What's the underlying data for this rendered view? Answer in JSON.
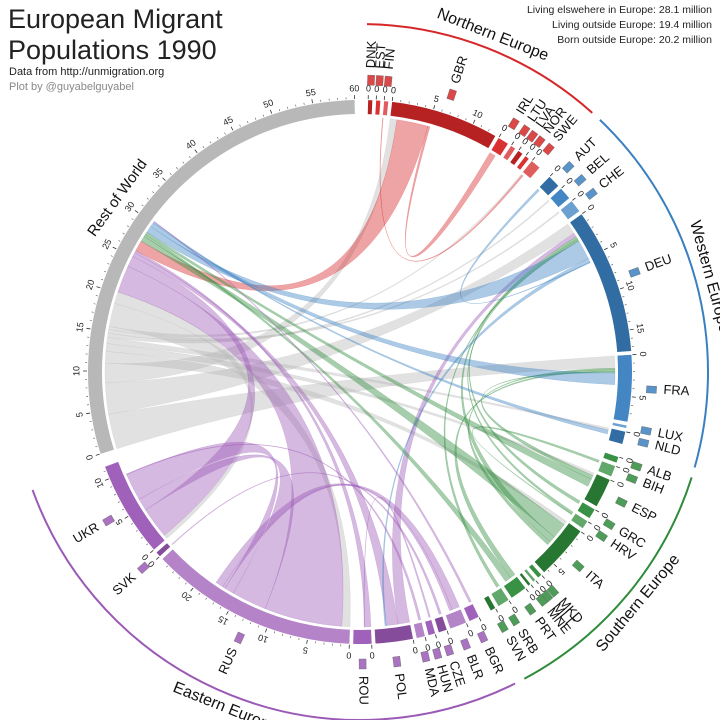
{
  "header": {
    "title": "European Migrant\nPopulations 1990",
    "source": "Data from http://unmigration.org",
    "credit": "Plot by @guyabelguyabel"
  },
  "stats": [
    {
      "label": "Living elswehere in Europe",
      "value": "28.1 million"
    },
    {
      "label": "Living outside Europe",
      "value": "19.4 million"
    },
    {
      "label": "Born outside Europe",
      "value": "20.2 million"
    }
  ],
  "chart_data": {
    "type": "chord",
    "unit": "millions",
    "regions": [
      {
        "name": "Northern Europe",
        "color": "#d62728",
        "countries": [
          {
            "code": "DNK",
            "total": 0.5,
            "ticks": [
              0
            ]
          },
          {
            "code": "EST",
            "total": 0.5,
            "ticks": [
              0
            ]
          },
          {
            "code": "FIN",
            "total": 0.5,
            "ticks": [
              0
            ]
          },
          {
            "code": "GBR",
            "total": 13,
            "ticks": [
              0,
              5,
              10
            ]
          },
          {
            "code": "IRL",
            "total": 1.3,
            "ticks": [
              0
            ]
          },
          {
            "code": "LTU",
            "total": 0.6,
            "ticks": [
              0
            ]
          },
          {
            "code": "LVA",
            "total": 0.6,
            "ticks": [
              0
            ]
          },
          {
            "code": "NOR",
            "total": 0.5,
            "ticks": [
              0
            ]
          },
          {
            "code": "SWE",
            "total": 1.2,
            "ticks": [
              0
            ]
          }
        ]
      },
      {
        "name": "Western Europe",
        "color": "#3a80c0",
        "countries": [
          {
            "code": "AUT",
            "total": 1.5,
            "ticks": [
              0
            ]
          },
          {
            "code": "BEL",
            "total": 1.5,
            "ticks": [
              0
            ]
          },
          {
            "code": "CHE",
            "total": 1.5,
            "ticks": [
              0
            ]
          },
          {
            "code": "DEU",
            "total": 17.5,
            "ticks": [
              0,
              5,
              10,
              15
            ]
          },
          {
            "code": "FRA",
            "total": 8,
            "ticks": [
              0,
              5
            ]
          },
          {
            "code": "LUX",
            "total": 0.3,
            "ticks": []
          },
          {
            "code": "NLD",
            "total": 1.5,
            "ticks": [
              0
            ]
          }
        ]
      },
      {
        "name": "Southern Europe",
        "color": "#2e8b3a",
        "countries": [
          {
            "code": "ALB",
            "total": 0.7,
            "ticks": [
              0
            ]
          },
          {
            "code": "BIH",
            "total": 1.3,
            "ticks": [
              0
            ]
          },
          {
            "code": "ESP",
            "total": 3.5,
            "ticks": [
              0
            ]
          },
          {
            "code": "GRC",
            "total": 1.2,
            "ticks": [
              0
            ]
          },
          {
            "code": "HRV",
            "total": 1,
            "ticks": [
              0
            ]
          },
          {
            "code": "ITA",
            "total": 6.5,
            "ticks": [
              0,
              5
            ]
          },
          {
            "code": "MKD",
            "total": 0.5,
            "ticks": [
              0
            ]
          },
          {
            "code": "MLT",
            "total": 0.3,
            "ticks": [
              0
            ]
          },
          {
            "code": "MNE",
            "total": 0.3,
            "ticks": [
              0
            ]
          },
          {
            "code": "PRT",
            "total": 2,
            "ticks": [
              0
            ]
          },
          {
            "code": "SRB",
            "total": 1.4,
            "ticks": [
              0
            ]
          },
          {
            "code": "SVN",
            "total": 0.6,
            "ticks": [
              0
            ]
          }
        ]
      },
      {
        "name": "Eastern Europe",
        "color": "#9b59b6",
        "countries": [
          {
            "code": "BGR",
            "total": 1.2,
            "ticks": [
              0
            ]
          },
          {
            "code": "BLR",
            "total": 2,
            "ticks": [
              0
            ]
          },
          {
            "code": "CZE",
            "total": 1,
            "ticks": [
              0
            ]
          },
          {
            "code": "HUN",
            "total": 0.8,
            "ticks": [
              0
            ]
          },
          {
            "code": "MDA",
            "total": 1,
            "ticks": [
              0
            ]
          },
          {
            "code": "POL",
            "total": 4.5,
            "ticks": [
              0
            ]
          },
          {
            "code": "ROU",
            "total": 2.2,
            "ticks": [
              0
            ]
          },
          {
            "code": "RUS",
            "total": 25,
            "ticks": [
              0,
              5,
              10,
              15,
              20
            ]
          },
          {
            "code": "SVK",
            "total": 0.6,
            "ticks": [
              0
            ]
          },
          {
            "code": "UKR",
            "total": 11.5,
            "ticks": [
              0,
              5,
              10
            ]
          }
        ]
      },
      {
        "name": "",
        "color": "#b8b8b8",
        "countries": [
          {
            "code": "Rest of World",
            "total": 60,
            "ticks": [
              0,
              5,
              10,
              15,
              20,
              25,
              30,
              35,
              40,
              45,
              50,
              55,
              60
            ]
          }
        ]
      }
    ],
    "flows": [
      {
        "from": "Rest of World",
        "to": "FRA",
        "value": 4.5
      },
      {
        "from": "Rest of World",
        "to": "DEU",
        "value": 4
      },
      {
        "from": "Rest of World",
        "to": "GBR",
        "value": 2.5
      },
      {
        "from": "Rest of World",
        "to": "ITA",
        "value": 1.5
      },
      {
        "from": "Rest of World",
        "to": "ESP",
        "value": 1
      },
      {
        "from": "Rest of World",
        "to": "NLD",
        "value": 0.8
      },
      {
        "from": "Rest of World",
        "to": "BEL",
        "value": 0.5
      },
      {
        "from": "Rest of World",
        "to": "CHE",
        "value": 0.5
      },
      {
        "from": "Rest of World",
        "to": "SWE",
        "value": 0.4
      },
      {
        "from": "Rest of World",
        "to": "RUS",
        "value": 3
      },
      {
        "from": "Rest of World",
        "to": "UKR",
        "value": 1.5
      },
      {
        "from": "RUS",
        "to": "Rest of World",
        "value": 10
      },
      {
        "from": "UKR",
        "to": "Rest of World",
        "value": 4
      },
      {
        "from": "RUS",
        "to": "UKR",
        "value": 4.5
      },
      {
        "from": "UKR",
        "to": "RUS",
        "value": 3.5
      },
      {
        "from": "BLR",
        "to": "RUS",
        "value": 1
      },
      {
        "from": "RUS",
        "to": "BLR",
        "value": 1
      },
      {
        "from": "POL",
        "to": "DEU",
        "value": 1.5
      },
      {
        "from": "POL",
        "to": "Rest of World",
        "value": 1.5
      },
      {
        "from": "ROU",
        "to": "Rest of World",
        "value": 0.8
      },
      {
        "from": "GBR",
        "to": "Rest of World",
        "value": 4
      },
      {
        "from": "IRL",
        "to": "GBR",
        "value": 0.8
      },
      {
        "from": "ITA",
        "to": "Rest of World",
        "value": 2
      },
      {
        "from": "ITA",
        "to": "DEU",
        "value": 0.8
      },
      {
        "from": "ITA",
        "to": "FRA",
        "value": 0.5
      },
      {
        "from": "PRT",
        "to": "FRA",
        "value": 0.7
      },
      {
        "from": "PRT",
        "to": "Rest of World",
        "value": 0.8
      },
      {
        "from": "ESP",
        "to": "FRA",
        "value": 0.5
      },
      {
        "from": "ESP",
        "to": "Rest of World",
        "value": 1
      },
      {
        "from": "GRC",
        "to": "DEU",
        "value": 0.4
      },
      {
        "from": "SRB",
        "to": "DEU",
        "value": 0.4
      },
      {
        "from": "HRV",
        "to": "DEU",
        "value": 0.3
      },
      {
        "from": "BIH",
        "to": "HRV",
        "value": 0.3
      },
      {
        "from": "DEU",
        "to": "Rest of World",
        "value": 2.5
      },
      {
        "from": "DEU",
        "to": "POL",
        "value": 0.5
      },
      {
        "from": "FRA",
        "to": "Rest of World",
        "value": 1.5
      },
      {
        "from": "NLD",
        "to": "Rest of World",
        "value": 0.5
      },
      {
        "from": "CZE",
        "to": "SVK",
        "value": 0.3
      },
      {
        "from": "HUN",
        "to": "ROU",
        "value": 0.2
      },
      {
        "from": "MDA",
        "to": "UKR",
        "value": 0.3
      },
      {
        "from": "BGR",
        "to": "Rest of World",
        "value": 0.3
      },
      {
        "from": "SWE",
        "to": "FIN",
        "value": 0.2
      },
      {
        "from": "AUT",
        "to": "DEU",
        "value": 0.3
      }
    ]
  }
}
